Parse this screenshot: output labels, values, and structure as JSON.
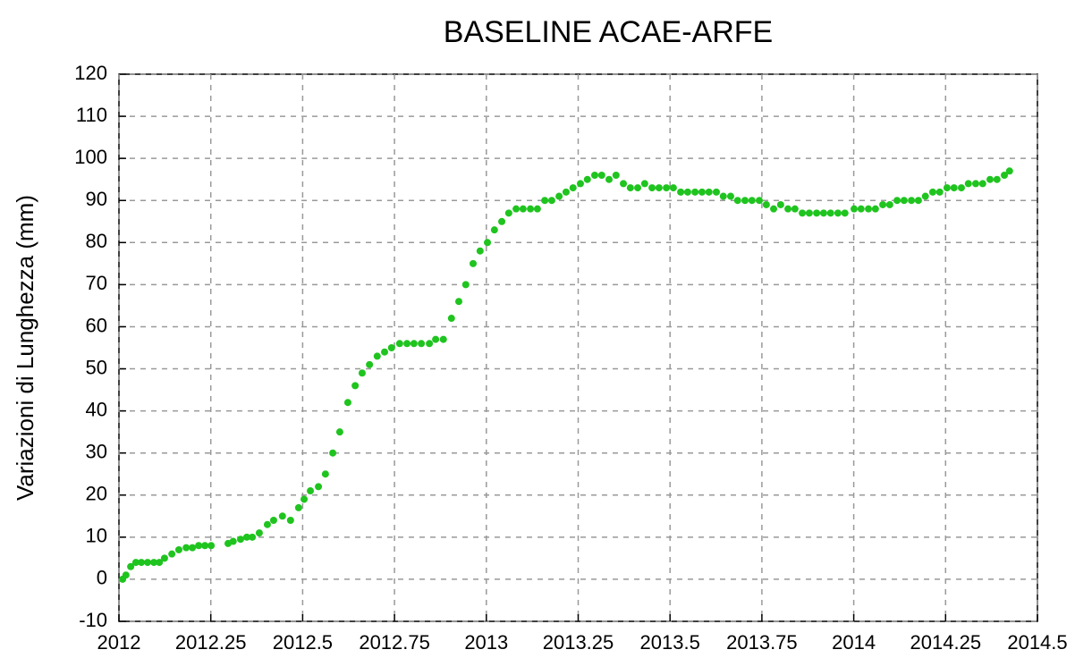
{
  "chart_data": {
    "type": "scatter",
    "title": "BASELINE ACAE-ARFE",
    "y_label": "Variazioni di Lunghezza (mm)",
    "color": "#1fc41f",
    "grid": true,
    "x": [
      2012.01,
      2012.019,
      2012.032,
      2012.046,
      2012.061,
      2012.078,
      2012.095,
      2012.11,
      2012.124,
      2012.144,
      2012.163,
      2012.183,
      2012.2,
      2012.217,
      2012.234,
      2012.251,
      2012.297,
      2012.311,
      2012.331,
      2012.348,
      2012.363,
      2012.382,
      2012.404,
      2012.421,
      2012.445,
      2012.467,
      2012.489,
      2012.504,
      2012.521,
      2012.543,
      2012.562,
      2012.582,
      2012.601,
      2012.623,
      2012.643,
      2012.662,
      2012.682,
      2012.703,
      2012.723,
      2012.742,
      2012.764,
      2012.784,
      2012.803,
      2012.823,
      2012.845,
      2012.862,
      2012.883,
      2012.905,
      2012.925,
      2012.944,
      2012.964,
      2012.983,
      2013.003,
      2013.022,
      2013.042,
      2013.061,
      2013.081,
      2013.1,
      2013.12,
      2013.139,
      2013.159,
      2013.178,
      2013.198,
      2013.217,
      2013.236,
      2013.256,
      2013.275,
      2013.295,
      2013.314,
      2013.334,
      2013.353,
      2013.373,
      2013.392,
      2013.412,
      2013.431,
      2013.451,
      2013.47,
      2013.49,
      2013.509,
      2013.529,
      2013.548,
      2013.568,
      2013.587,
      2013.606,
      2013.626,
      2013.645,
      2013.665,
      2013.684,
      2013.704,
      2013.723,
      2013.743,
      2013.762,
      2013.782,
      2013.801,
      2013.821,
      2013.84,
      2013.86,
      2013.879,
      2013.899,
      2013.918,
      2013.937,
      2013.957,
      2013.976,
      2014.001,
      2014.02,
      2014.04,
      2014.059,
      2014.079,
      2014.098,
      2014.118,
      2014.137,
      2014.157,
      2014.176,
      2014.195,
      2014.215,
      2014.234,
      2014.254,
      2014.273,
      2014.293,
      2014.312,
      2014.332,
      2014.351,
      2014.371,
      2014.39,
      2014.41,
      2014.424
    ],
    "values": [
      0,
      1,
      3,
      4,
      4,
      4,
      4,
      4,
      5,
      6,
      7,
      7.5,
      7.5,
      8,
      8,
      8,
      8.5,
      9,
      9.5,
      10,
      10,
      11,
      13,
      14,
      15,
      14,
      17,
      19,
      21,
      22,
      25,
      30,
      35,
      42,
      46,
      49,
      51,
      53,
      54,
      55,
      56,
      56,
      56,
      56,
      56,
      57,
      57,
      62,
      66,
      70,
      75,
      78,
      80,
      83,
      85,
      87,
      88,
      88,
      88,
      88,
      90,
      90,
      91,
      92,
      93,
      94,
      95,
      96,
      96,
      95,
      96,
      94,
      93,
      93,
      94,
      93,
      93,
      93,
      93,
      92,
      92,
      92,
      92,
      92,
      92,
      91,
      91,
      90,
      90,
      90,
      90,
      89,
      88,
      89,
      88,
      88,
      87,
      87,
      87,
      87,
      87,
      87,
      87,
      88,
      88,
      88,
      88,
      89,
      89,
      90,
      90,
      90,
      90,
      91,
      92,
      92,
      93,
      93,
      93,
      94,
      94,
      94,
      95,
      95,
      96,
      97
    ],
    "xlim": [
      2012,
      2014.5
    ],
    "xticks": [
      2012,
      2012.25,
      2012.5,
      2012.75,
      2013,
      2013.25,
      2013.5,
      2013.75,
      2014,
      2014.25,
      2014.5
    ],
    "ylim": [
      -10,
      120
    ],
    "yticks": [
      -10,
      0,
      10,
      20,
      30,
      40,
      50,
      60,
      70,
      80,
      90,
      100,
      110,
      120
    ]
  }
}
